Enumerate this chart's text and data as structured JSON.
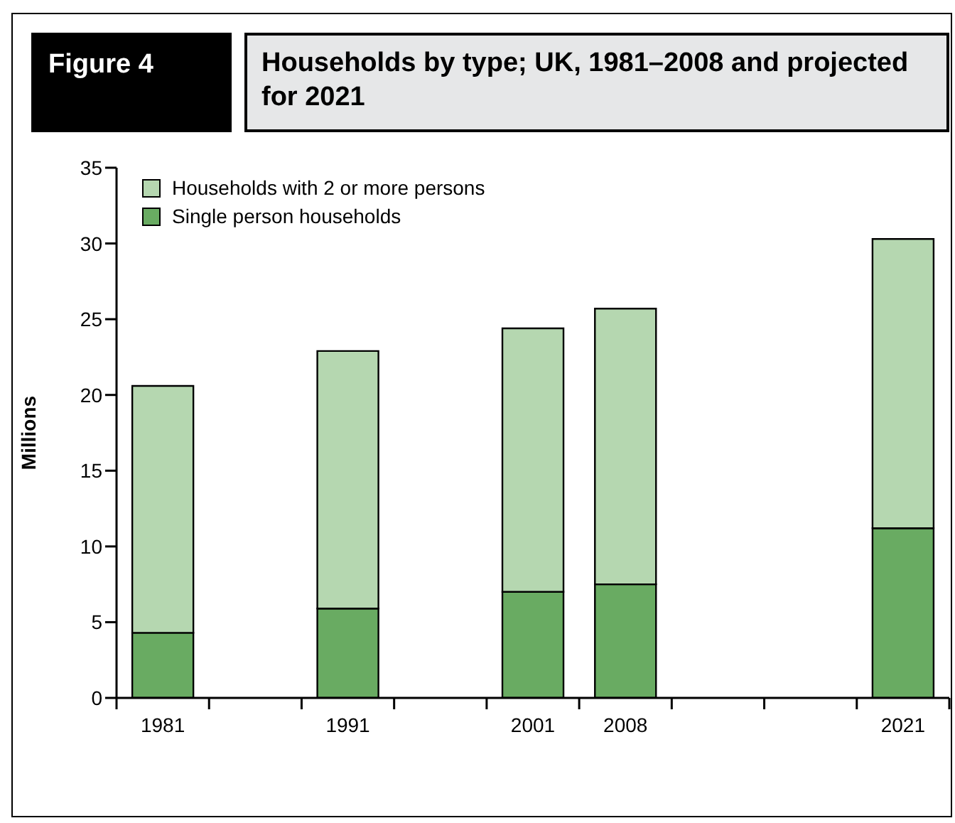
{
  "chart_data": {
    "type": "bar",
    "title": "Households by type; UK, 1981–2008 and projected for 2021",
    "annotations": [
      "Figure 4"
    ],
    "ylabel": "Millions",
    "categories": [
      "1981",
      null,
      "1991",
      null,
      "2001",
      "2008",
      null,
      null,
      "2021"
    ],
    "stacked": true,
    "series": [
      {
        "name": "Single person households",
        "color": "#69ab62",
        "values": [
          4.3,
          null,
          5.9,
          null,
          7.0,
          7.5,
          null,
          null,
          11.2
        ]
      },
      {
        "name": "Households with 2 or more persons",
        "color": "#b5d7b0",
        "values": [
          16.3,
          null,
          17.0,
          null,
          17.4,
          18.2,
          null,
          null,
          19.1
        ]
      }
    ],
    "ylim": [
      0,
      35
    ],
    "yticks": [
      0,
      5,
      10,
      15,
      20,
      25,
      30,
      35
    ],
    "grid": false,
    "legend": "top left"
  }
}
